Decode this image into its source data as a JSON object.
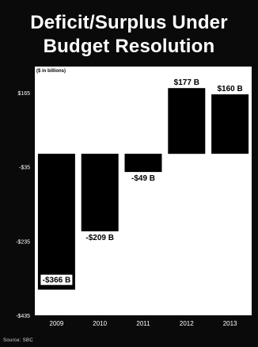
{
  "chart_data": {
    "type": "bar",
    "title_lines": [
      "Deficit/Surplus Under",
      "Budget Resolution"
    ],
    "unit_label": "($ in billions)",
    "categories": [
      "2009",
      "2010",
      "2011",
      "2012",
      "2013"
    ],
    "values": [
      -366,
      -209,
      -49,
      177,
      160
    ],
    "data_labels": [
      "-$366 B",
      "-$209 B",
      "-$49 B",
      "$177 B",
      "$160 B"
    ],
    "y_ticks": [
      165,
      -35,
      -235,
      -435
    ],
    "y_tick_labels": [
      "$165",
      "-$35",
      "-$235",
      "-$435"
    ],
    "ylim": [
      -435,
      235
    ],
    "grid": false,
    "colors": {
      "background": "#0a0a0a",
      "plot_area": "#ffffff",
      "bar": "#000000",
      "text_light": "#ffffff",
      "text_dark": "#000000"
    }
  },
  "source": "Source: SBC"
}
